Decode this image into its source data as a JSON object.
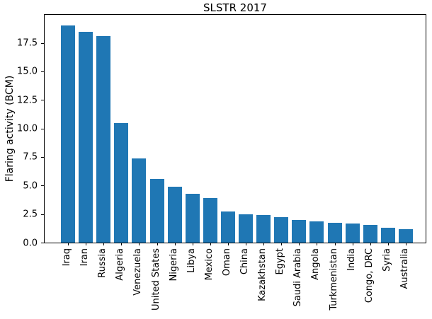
{
  "figure": {
    "background_color": "#ffffff",
    "axis_color": "#000000",
    "text_color": "#000000"
  },
  "chart_data": {
    "type": "bar",
    "title": "SLSTR 2017",
    "xlabel": "",
    "ylabel": "Flaring activity (BCM)",
    "categories": [
      "Iraq",
      "Iran",
      "Russia",
      "Algeria",
      "Venezuela",
      "United States",
      "Nigeria",
      "Libya",
      "Mexico",
      "Oman",
      "China",
      "Kazakhstan",
      "Egypt",
      "Saudi Arabia",
      "Angola",
      "Turkmenistan",
      "India",
      "Congo, DRC",
      "Syria",
      "Australia"
    ],
    "values": [
      19.0,
      18.45,
      18.1,
      10.45,
      7.35,
      5.6,
      4.9,
      4.3,
      3.9,
      2.75,
      2.5,
      2.4,
      2.25,
      2.0,
      1.85,
      1.75,
      1.65,
      1.55,
      1.3,
      1.15
    ],
    "ytick_labels": [
      "0.0",
      "2.5",
      "5.0",
      "7.5",
      "10.0",
      "12.5",
      "15.0",
      "17.5"
    ],
    "ylim": [
      0,
      19.95
    ],
    "bar_color": "#1f77b4",
    "grid": false,
    "legend": "none",
    "xtick_label_rotation_degrees": 90
  }
}
